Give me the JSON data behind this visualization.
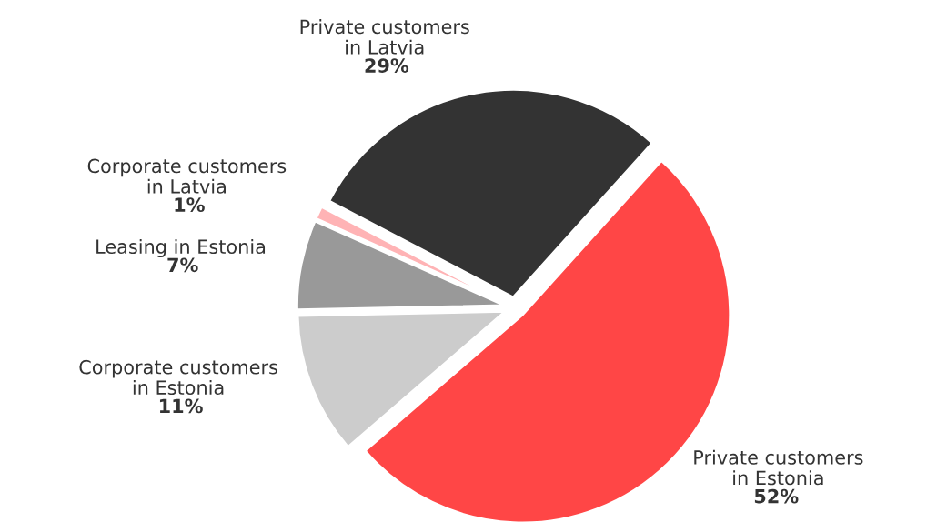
{
  "chart_data": {
    "type": "pie",
    "categories": [
      "Private customers\nin Estonia",
      "Corporate customers\nin Estonia",
      "Leasing in Estonia",
      "Corporate customers\nin Latvia",
      "Private customers\nin Latvia"
    ],
    "values": [
      52,
      11,
      7,
      1,
      29
    ],
    "value_labels": [
      "52%",
      "11%",
      "7%",
      "1%",
      "29%"
    ],
    "colors": [
      "#ff4646",
      "#cccccc",
      "#999999",
      "#ffb3b5",
      "#333333"
    ]
  }
}
